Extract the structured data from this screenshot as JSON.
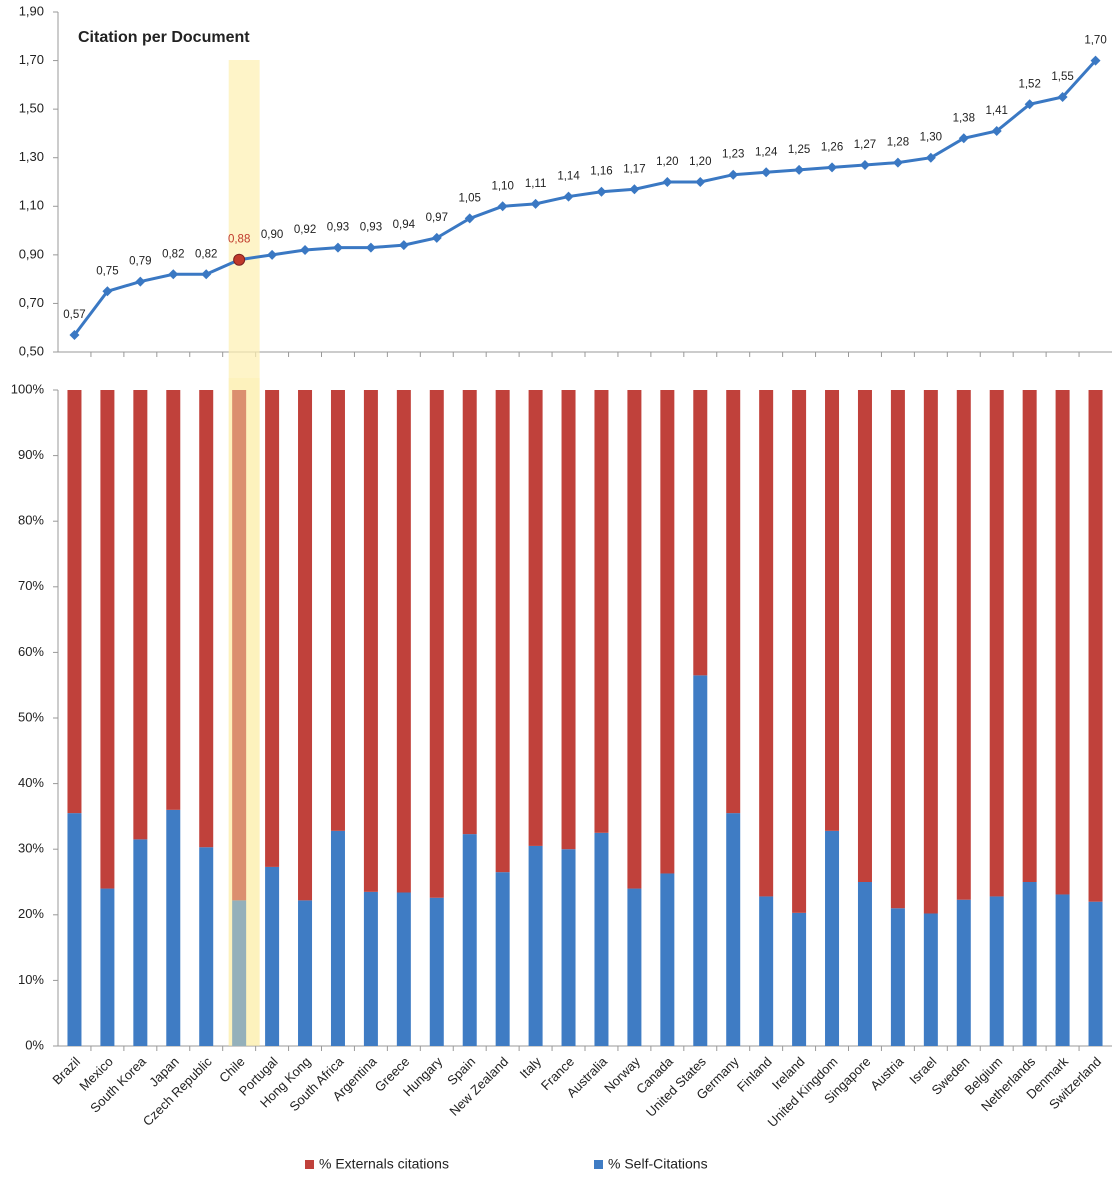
{
  "chart_data": [
    {
      "type": "line",
      "title": "Citation per Document",
      "categories": [
        "Brazil",
        "Mexico",
        "South Korea",
        "Japan",
        "Czech Republic",
        "Chile",
        "Portugal",
        "Hong Kong",
        "South Africa",
        "Argentina",
        "Greece",
        "Hungary",
        "Spain",
        "New Zealand",
        "Italy",
        "France",
        "Australia",
        "Norway",
        "Canada",
        "United States",
        "Germany",
        "Finland",
        "Ireland",
        "United Kingdom",
        "Singapore",
        "Austria",
        "Israel",
        "Sweden",
        "Belgium",
        "Netherlands",
        "Denmark",
        "Switzerland"
      ],
      "values": [
        0.57,
        0.75,
        0.79,
        0.82,
        0.82,
        0.88,
        0.9,
        0.92,
        0.93,
        0.93,
        0.94,
        0.97,
        1.05,
        1.1,
        1.11,
        1.14,
        1.16,
        1.17,
        1.2,
        1.2,
        1.23,
        1.24,
        1.25,
        1.26,
        1.27,
        1.28,
        1.3,
        1.38,
        1.41,
        1.52,
        1.55,
        1.7
      ],
      "value_labels": [
        "0,57",
        "0,75",
        "0,79",
        "0,82",
        "0,82",
        "0,88",
        "0,90",
        "0,92",
        "0,93",
        "0,93",
        "0,94",
        "0,97",
        "1,05",
        "1,10",
        "1,11",
        "1,14",
        "1,16",
        "1,17",
        "1,20",
        "1,20",
        "1,23",
        "1,24",
        "1,25",
        "1,26",
        "1,27",
        "1,28",
        "1,30",
        "1,38",
        "1,41",
        "1,52",
        "1,55",
        "1,70"
      ],
      "color": "#3a78c3",
      "highlight": "Chile",
      "highlight_color": "#c0392b",
      "ylim": [
        0.5,
        1.9
      ],
      "yticks": [
        {
          "value": 0.5,
          "label": "0,50"
        },
        {
          "value": 0.7,
          "label": "0,70"
        },
        {
          "value": 0.9,
          "label": "0,90"
        },
        {
          "value": 1.1,
          "label": "1,10"
        },
        {
          "value": 1.3,
          "label": "1,30"
        },
        {
          "value": 1.5,
          "label": "1,50"
        },
        {
          "value": 1.7,
          "label": "1,70"
        },
        {
          "value": 1.9,
          "label": "1,90"
        }
      ]
    },
    {
      "type": "stacked_bar",
      "categories": [
        "Brazil",
        "Mexico",
        "South Korea",
        "Japan",
        "Czech Republic",
        "Chile",
        "Portugal",
        "Hong Kong",
        "South Africa",
        "Argentina",
        "Greece",
        "Hungary",
        "Spain",
        "New Zealand",
        "Italy",
        "France",
        "Australia",
        "Norway",
        "Canada",
        "United States",
        "Germany",
        "Finland",
        "Ireland",
        "United Kingdom",
        "Singapore",
        "Austria",
        "Israel",
        "Sweden",
        "Belgium",
        "Netherlands",
        "Denmark",
        "Switzerland"
      ],
      "series": [
        {
          "name": "% Externals citations",
          "color": "#c0413b",
          "values": [
            64.5,
            76,
            68.5,
            64,
            69.7,
            77.8,
            72.7,
            77.8,
            67.2,
            76.5,
            76.6,
            77.4,
            67.7,
            73.5,
            69.5,
            70,
            67.5,
            76,
            73.7,
            43.5,
            64.5,
            77.2,
            79.7,
            67.2,
            75,
            79,
            79.8,
            77.7,
            77.2,
            75,
            76.9,
            78
          ]
        },
        {
          "name": "% Self-Citations",
          "color": "#3f7cc4",
          "values": [
            35.5,
            24,
            31.5,
            36,
            30.3,
            22.2,
            27.3,
            22.2,
            32.8,
            23.5,
            23.4,
            22.6,
            32.3,
            26.5,
            30.5,
            30,
            32.5,
            24,
            26.3,
            56.5,
            35.5,
            22.8,
            20.3,
            32.8,
            25,
            21,
            20.2,
            22.3,
            22.8,
            25,
            23.1,
            22
          ]
        }
      ],
      "ylim": [
        0,
        100
      ],
      "yticks": [
        {
          "value": 0,
          "label": "0%"
        },
        {
          "value": 10,
          "label": "10%"
        },
        {
          "value": 20,
          "label": "20%"
        },
        {
          "value": 30,
          "label": "30%"
        },
        {
          "value": 40,
          "label": "40%"
        },
        {
          "value": 50,
          "label": "50%"
        },
        {
          "value": 60,
          "label": "60%"
        },
        {
          "value": 70,
          "label": "70%"
        },
        {
          "value": 80,
          "label": "80%"
        },
        {
          "value": 90,
          "label": "90%"
        },
        {
          "value": 100,
          "label": "100%"
        }
      ]
    }
  ]
}
